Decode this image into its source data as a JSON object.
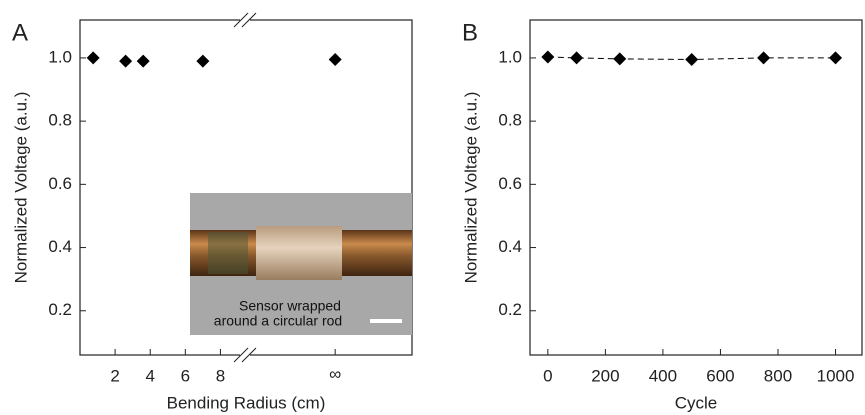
{
  "chart_data": [
    {
      "type": "scatter",
      "panel_label": "A",
      "x_label": "Bending Radius (cm)",
      "y_label": "Normalized Voltage (a.u.)",
      "x": [
        0.75,
        2.6,
        3.6,
        7
      ],
      "values": [
        1.0,
        0.99,
        0.99,
        0.99
      ],
      "color": "#000000",
      "infinity_point": {
        "label": "∞",
        "value": 0.995
      },
      "xlim": [
        0,
        9.4
      ],
      "xticks": [
        2,
        4,
        6,
        8
      ],
      "ylim": [
        0.06,
        1.12
      ],
      "yticks": [
        0.2,
        0.4,
        0.6,
        0.8,
        {
          "value": 1.0,
          "label": "1.0"
        }
      ],
      "inset_caption": [
        "Sensor wrapped",
        "around a circular rod"
      ]
    },
    {
      "type": "line",
      "panel_label": "B",
      "x_label": "Cycle",
      "y_label": "Normalized Voltage (a.u.)",
      "x": [
        0,
        100,
        250,
        500,
        750,
        1000
      ],
      "values": [
        1.003,
        1.0,
        0.997,
        0.995,
        1.0,
        1.0
      ],
      "color": "#000000",
      "xlim": [
        -62,
        1092
      ],
      "xticks": [
        0,
        200,
        400,
        600,
        800,
        1000
      ],
      "ylim": [
        0.06,
        1.12
      ],
      "yticks": [
        0.2,
        0.4,
        0.6,
        0.8,
        {
          "value": 1.0,
          "label": "1.0"
        }
      ]
    }
  ]
}
